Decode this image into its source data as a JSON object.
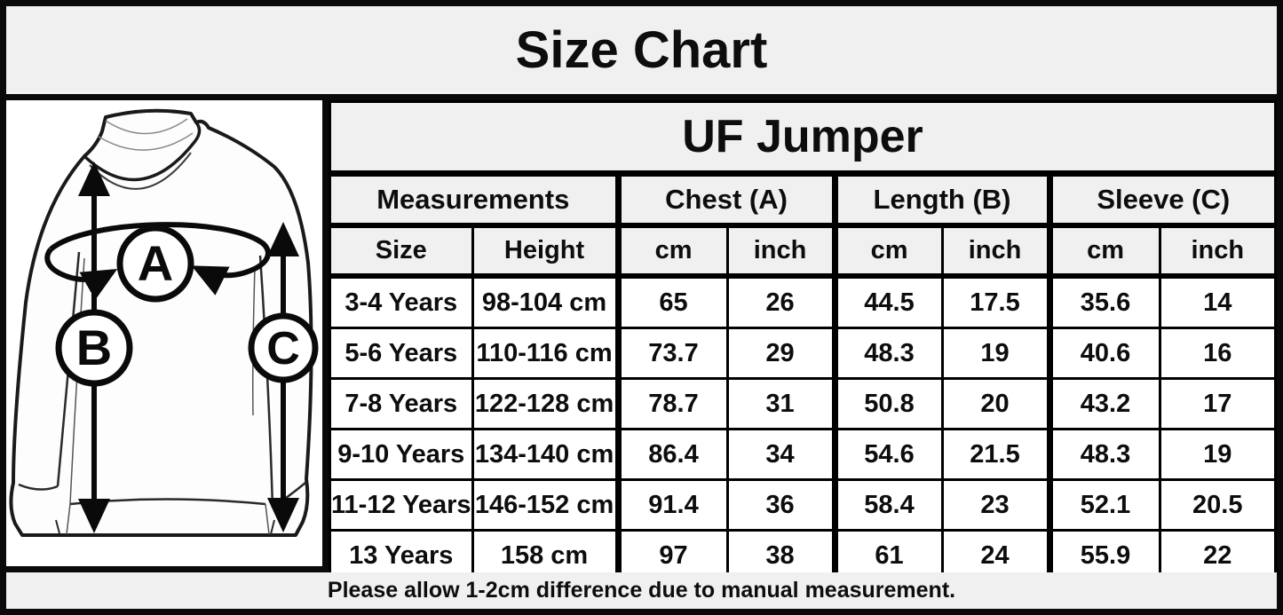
{
  "title": "Size Chart",
  "product": "UF Jumper",
  "diagram": {
    "label_a": "A",
    "label_b": "B",
    "label_c": "C"
  },
  "table": {
    "group_headers": [
      {
        "label": "Measurements",
        "span": 2
      },
      {
        "label": "Chest (A)",
        "span": 2
      },
      {
        "label": "Length (B)",
        "span": 2
      },
      {
        "label": "Sleeve (C)",
        "span": 2
      }
    ],
    "sub_headers": [
      "Size",
      "Height",
      "cm",
      "inch",
      "cm",
      "inch",
      "cm",
      "inch"
    ],
    "rows": [
      [
        "3-4 Years",
        "98-104 cm",
        "65",
        "26",
        "44.5",
        "17.5",
        "35.6",
        "14"
      ],
      [
        "5-6 Years",
        "110-116 cm",
        "73.7",
        "29",
        "48.3",
        "19",
        "40.6",
        "16"
      ],
      [
        "7-8 Years",
        "122-128 cm",
        "78.7",
        "31",
        "50.8",
        "20",
        "43.2",
        "17"
      ],
      [
        "9-10 Years",
        "134-140 cm",
        "86.4",
        "34",
        "54.6",
        "21.5",
        "48.3",
        "19"
      ],
      [
        "11-12 Years",
        "146-152 cm",
        "91.4",
        "36",
        "58.4",
        "23",
        "52.1",
        "20.5"
      ],
      [
        "13 Years",
        "158 cm",
        "97",
        "38",
        "61",
        "24",
        "55.9",
        "22"
      ]
    ]
  },
  "footer": {
    "note": "Please allow 1-2cm difference due to manual measurement."
  },
  "colors": {
    "band_bg": "#f0f0f0",
    "cell_bg": "#ffffff",
    "border": "#000000",
    "text": "#0d0d0d"
  }
}
